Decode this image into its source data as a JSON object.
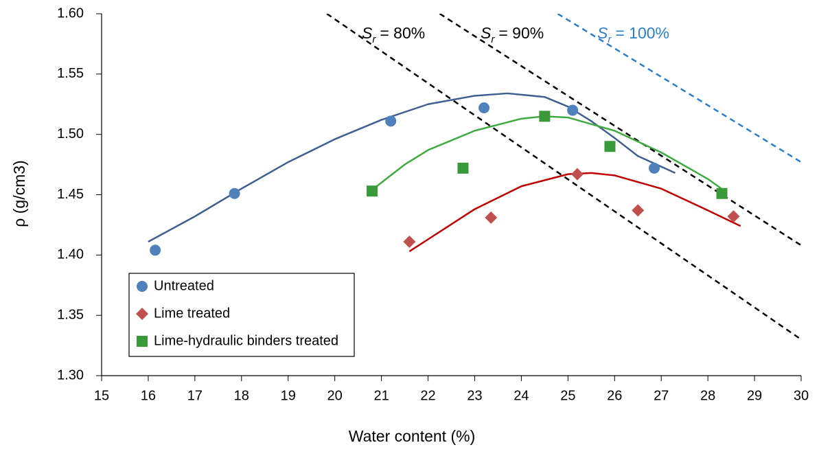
{
  "chart_data": {
    "type": "scatter",
    "xlabel": "Water content (%)",
    "ylabel": "ρ (g/cm3)",
    "xlim": [
      15,
      30
    ],
    "ylim": [
      1.3,
      1.6
    ],
    "xticks": [
      15,
      16,
      17,
      18,
      19,
      20,
      21,
      22,
      23,
      24,
      25,
      26,
      27,
      28,
      29,
      30
    ],
    "yticks": [
      {
        "value": 1.3,
        "label": "1.30"
      },
      {
        "value": 1.35,
        "label": "1.35"
      },
      {
        "value": 1.4,
        "label": "1.40"
      },
      {
        "value": 1.45,
        "label": "1.45"
      },
      {
        "value": 1.5,
        "label": "1.50"
      },
      {
        "value": 1.55,
        "label": "1.55"
      },
      {
        "value": 1.6,
        "label": "1.60"
      }
    ],
    "grid": false,
    "legend": "lower-left",
    "series": [
      {
        "name": "Untreated",
        "color": "#4f81bd",
        "marker": "circle",
        "x": [
          16.15,
          17.85,
          21.2,
          23.2,
          25.1,
          26.85
        ],
        "values": [
          1.404,
          1.451,
          1.511,
          1.522,
          1.52,
          1.472
        ]
      },
      {
        "name": "Lime treated",
        "color": "#c0504d",
        "marker": "diamond",
        "x": [
          21.6,
          23.35,
          25.2,
          26.5,
          28.55
        ],
        "values": [
          1.411,
          1.431,
          1.467,
          1.437,
          1.432
        ]
      },
      {
        "name": "Lime-hydraulic binders treated",
        "color": "#3a9a3a",
        "marker": "square",
        "x": [
          20.8,
          22.75,
          24.5,
          25.9,
          28.3
        ],
        "values": [
          1.453,
          1.472,
          1.515,
          1.49,
          1.451
        ]
      }
    ],
    "fits": [
      {
        "color": "#3e5f8f",
        "x": [
          16,
          17,
          18,
          19,
          20,
          21,
          22,
          23,
          23.7,
          24.5,
          25,
          25.5,
          26,
          26.5,
          27.3
        ],
        "values": [
          1.411,
          1.432,
          1.455,
          1.477,
          1.496,
          1.512,
          1.525,
          1.532,
          1.534,
          1.531,
          1.523,
          1.511,
          1.497,
          1.482,
          1.468
        ]
      },
      {
        "color": "#c00000",
        "x": [
          21.6,
          22,
          23,
          24,
          25,
          25.5,
          26,
          27,
          28,
          28.7
        ],
        "values": [
          1.403,
          1.413,
          1.438,
          1.457,
          1.467,
          1.468,
          1.466,
          1.455,
          1.437,
          1.424
        ]
      },
      {
        "color": "#3fab3f",
        "x": [
          20.8,
          21.5,
          22,
          23,
          24,
          24.5,
          25,
          26,
          27,
          28,
          28.4
        ],
        "values": [
          1.454,
          1.475,
          1.487,
          1.503,
          1.513,
          1.515,
          1.514,
          1.503,
          1.485,
          1.463,
          1.452
        ]
      }
    ],
    "reference_lines": [
      {
        "color": "#000000",
        "x": [
          19.83,
          30
        ],
        "values": [
          1.6,
          1.33
        ],
        "label": {
          "symbol": "S",
          "subscript": "r",
          "text": "= 80%"
        }
      },
      {
        "color": "#000000",
        "x": [
          22.25,
          30
        ],
        "values": [
          1.6,
          1.408
        ],
        "label": {
          "symbol": "S",
          "subscript": "r",
          "text": "= 90%"
        }
      },
      {
        "color": "#2a7dc9",
        "x": [
          24.78,
          30
        ],
        "values": [
          1.6,
          1.477
        ],
        "label": {
          "symbol": "S",
          "subscript": "r",
          "text": "= 100%"
        }
      }
    ]
  }
}
